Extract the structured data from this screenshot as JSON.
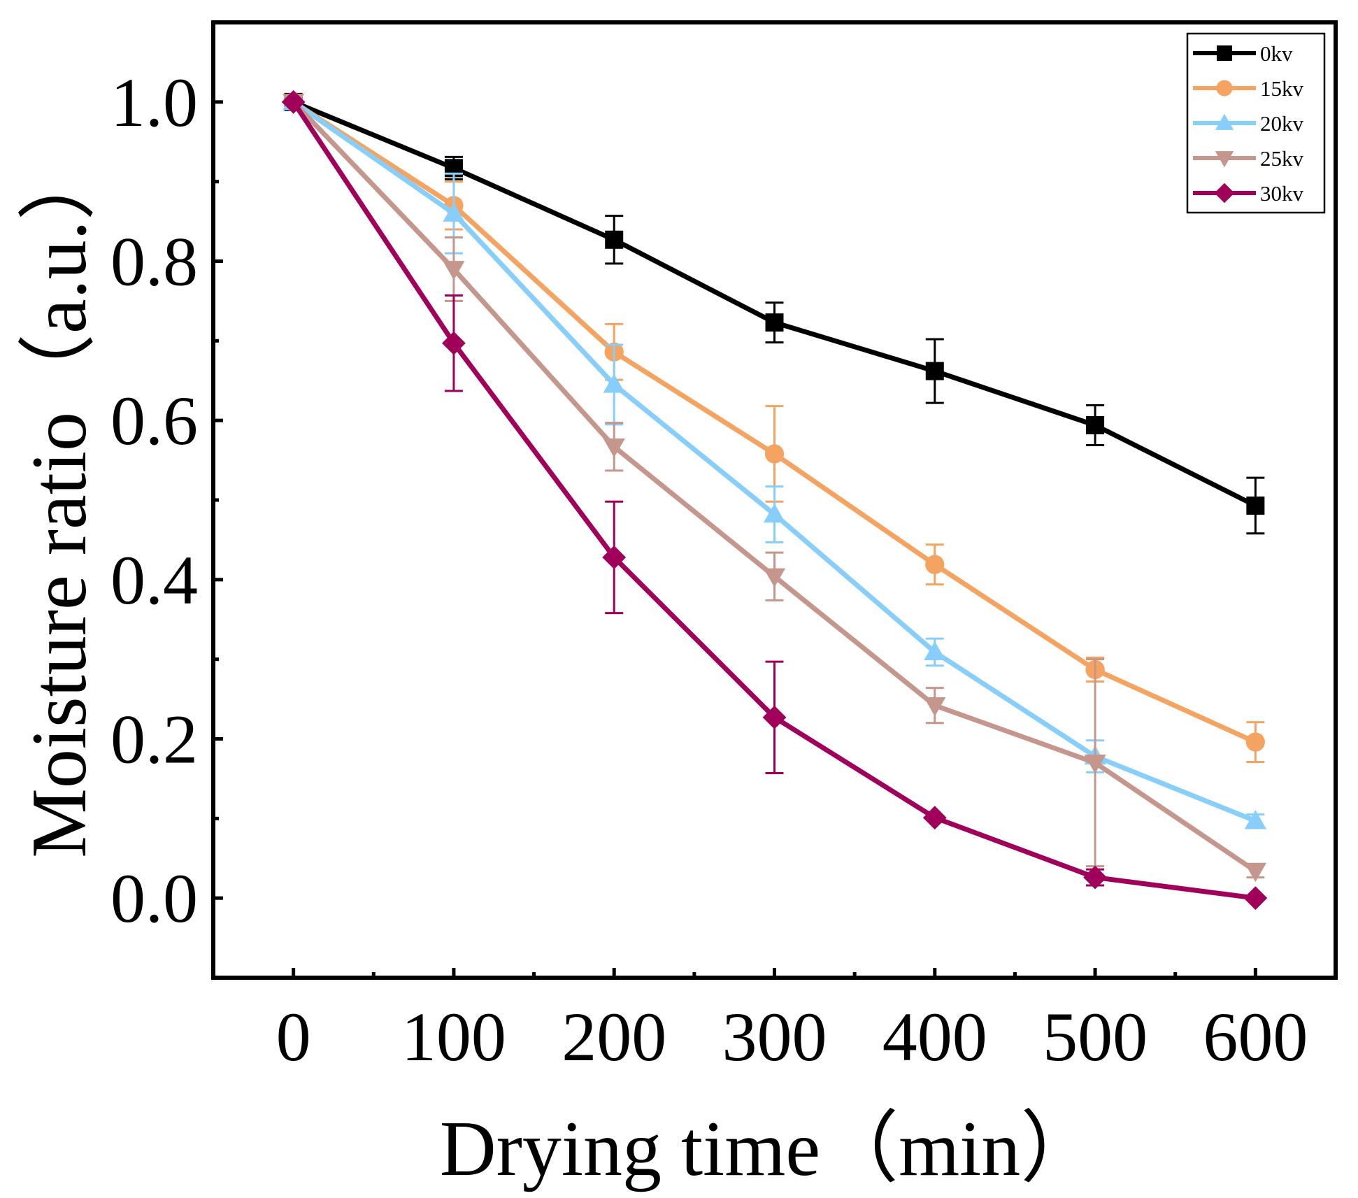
{
  "chart_data": {
    "type": "line",
    "title": "",
    "xlabel": "Drying time（min）",
    "ylabel": "Moisture ratio（a.u.）",
    "xlim": [
      -50,
      650
    ],
    "ylim": [
      -0.1,
      1.1
    ],
    "xticks": [
      0,
      100,
      200,
      300,
      400,
      500,
      600
    ],
    "yticks": [
      0.0,
      0.2,
      0.4,
      0.6,
      0.8,
      1.0
    ],
    "xtick_labels": [
      "0",
      "100",
      "200",
      "300",
      "400",
      "500",
      "600"
    ],
    "ytick_labels": [
      "0.0",
      "0.2",
      "0.4",
      "0.6",
      "0.8",
      "1.0"
    ],
    "legend_position": "top-right",
    "grid": false,
    "x": [
      0,
      100,
      200,
      300,
      400,
      500,
      600
    ],
    "series": [
      {
        "name": "0kv",
        "color": "#000000",
        "marker": "square",
        "values": [
          1.0,
          0.917,
          0.827,
          0.723,
          0.662,
          0.594,
          0.493
        ],
        "errors": [
          0.0,
          0.014,
          0.03,
          0.025,
          0.04,
          0.025,
          0.035
        ]
      },
      {
        "name": "15kv",
        "color": "#F4A460",
        "marker": "circle",
        "values": [
          1.0,
          0.87,
          0.686,
          0.558,
          0.419,
          0.287,
          0.196
        ],
        "errors": [
          0.0,
          0.03,
          0.035,
          0.06,
          0.025,
          0.015,
          0.025
        ]
      },
      {
        "name": "20kv",
        "color": "#87CEFA",
        "marker": "triangle-up",
        "values": [
          1.0,
          0.86,
          0.645,
          0.482,
          0.309,
          0.178,
          0.097
        ],
        "errors": [
          0.0,
          0.05,
          0.05,
          0.035,
          0.017,
          0.02,
          0.008
        ]
      },
      {
        "name": "25kv",
        "color": "#C4968C",
        "marker": "triangle-down",
        "values": [
          1.0,
          0.79,
          0.567,
          0.404,
          0.242,
          0.17,
          0.034
        ],
        "errors": [
          0.0,
          0.04,
          0.03,
          0.03,
          0.022,
          0.13,
          0.008
        ]
      },
      {
        "name": "30kv",
        "color": "#A0005A",
        "marker": "diamond",
        "values": [
          1.0,
          0.697,
          0.428,
          0.227,
          0.101,
          0.026,
          0.0
        ],
        "errors": [
          0.0,
          0.06,
          0.07,
          0.07,
          0.0,
          0.01,
          0.0
        ]
      }
    ]
  }
}
